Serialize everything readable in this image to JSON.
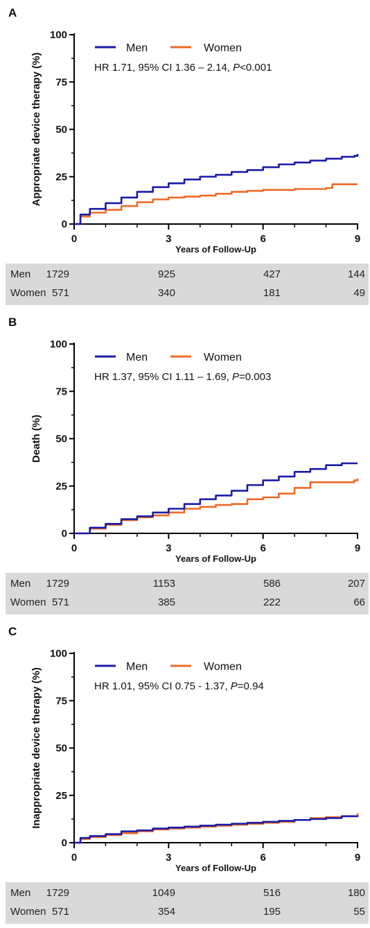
{
  "colors": {
    "men": "#1a1aa6",
    "women": "#ee6a25",
    "axis": "#000000",
    "table_bg": "#d9d9d9"
  },
  "chart_data": [
    {
      "panel": "A",
      "type": "line",
      "ylabel": "Appropriate device therapy (%)",
      "xlabel": "Years of Follow-Up",
      "xlim": [
        0,
        9
      ],
      "ylim": [
        0,
        100
      ],
      "xticks": [
        "0",
        "3",
        "6",
        "9"
      ],
      "yticks": [
        "0",
        "25",
        "50",
        "75",
        "100"
      ],
      "legend": [
        "Men",
        "Women"
      ],
      "legend_position": "top-left",
      "stat": {
        "hr_ci": "HR 1.71, 95% CI  1.36 – 2.14, ",
        "p_symbol": "P",
        "p_value": "<0.001"
      },
      "series": [
        {
          "name": "Men",
          "x": [
            0,
            0.2,
            0.5,
            1,
            1.5,
            2,
            2.5,
            3,
            3.5,
            4,
            4.5,
            5,
            5.5,
            6,
            6.5,
            7,
            7.5,
            8,
            8.5,
            8.9,
            9
          ],
          "y": [
            0,
            5,
            8,
            11,
            14,
            17,
            19.5,
            21.5,
            23.5,
            25,
            26,
            27.5,
            28.5,
            30,
            31.5,
            32.5,
            33.5,
            34.5,
            35.5,
            36,
            37
          ]
        },
        {
          "name": "Women",
          "x": [
            0,
            0.2,
            0.5,
            1,
            1.5,
            2,
            2.5,
            3,
            3.5,
            4,
            4.5,
            5,
            5.5,
            6,
            6.5,
            7,
            7.5,
            8,
            8.2,
            8.5,
            9
          ],
          "y": [
            0,
            4,
            6,
            7.5,
            9.5,
            11.5,
            13,
            14,
            14.5,
            15,
            16,
            17,
            17.5,
            18,
            18,
            18.5,
            18.5,
            19,
            21,
            21,
            21
          ]
        }
      ],
      "risk_table": [
        {
          "group": "Men",
          "counts": [
            "1729",
            "925",
            "427",
            "144"
          ]
        },
        {
          "group": "Women",
          "counts": [
            "571",
            "340",
            "181",
            "49"
          ]
        }
      ]
    },
    {
      "panel": "B",
      "type": "line",
      "ylabel": "Death (%)",
      "xlabel": "Years of Follow-Up",
      "xlim": [
        0,
        9
      ],
      "ylim": [
        0,
        100
      ],
      "xticks": [
        "0",
        "3",
        "6",
        "9"
      ],
      "yticks": [
        "0",
        "25",
        "50",
        "75",
        "100"
      ],
      "legend": [
        "Men",
        "Women"
      ],
      "legend_position": "top-left",
      "stat": {
        "hr_ci": "HR 1.37, 95% CI  1.11 – 1.69, ",
        "p_symbol": "P",
        "p_value": "=0.003"
      },
      "series": [
        {
          "name": "Men",
          "x": [
            0,
            0.5,
            1,
            1.5,
            2,
            2.5,
            3,
            3.5,
            4,
            4.5,
            5,
            5.5,
            6,
            6.5,
            7,
            7.5,
            8,
            8.5,
            9
          ],
          "y": [
            0,
            3,
            5,
            7.5,
            9,
            11,
            13,
            15.5,
            18,
            20,
            22.5,
            25.5,
            28,
            30,
            32.5,
            34,
            36,
            37,
            37
          ]
        },
        {
          "name": "Women",
          "x": [
            0,
            0.5,
            1,
            1.5,
            2,
            2.5,
            3,
            3.5,
            4,
            4.5,
            5,
            5.5,
            6,
            6.5,
            7,
            7.5,
            8,
            8.5,
            8.9,
            9
          ],
          "y": [
            0,
            2.5,
            4.5,
            7,
            8.5,
            9.5,
            11,
            13,
            14,
            15,
            15.5,
            18,
            19,
            21,
            24,
            27,
            27,
            27,
            28,
            29
          ]
        }
      ],
      "risk_table": [
        {
          "group": "Men",
          "counts": [
            "1729",
            "1153",
            "586",
            "207"
          ]
        },
        {
          "group": "Women",
          "counts": [
            "571",
            "385",
            "222",
            "66"
          ]
        }
      ]
    },
    {
      "panel": "C",
      "type": "line",
      "ylabel": "Inappropriate device therapy (%)",
      "xlabel": "Years of Follow-Up",
      "xlim": [
        0,
        9
      ],
      "ylim": [
        0,
        100
      ],
      "xticks": [
        "0",
        "3",
        "6",
        "9"
      ],
      "yticks": [
        "0",
        "25",
        "50",
        "75",
        "100"
      ],
      "legend": [
        "Men",
        "Women"
      ],
      "legend_position": "top-left",
      "stat": {
        "hr_ci": "HR 1.01, 95% CI  0.75 - 1.37, ",
        "p_symbol": "P",
        "p_value": "=0.94"
      },
      "series": [
        {
          "name": "Men",
          "x": [
            0,
            0.2,
            0.5,
            1,
            1.5,
            2,
            2.5,
            3,
            3.5,
            4,
            4.5,
            5,
            5.5,
            6,
            6.5,
            7,
            7.5,
            8,
            8.5,
            9
          ],
          "y": [
            0,
            2.5,
            3.5,
            4.5,
            6,
            6.5,
            7.5,
            8,
            8.5,
            9,
            9.5,
            10,
            10.5,
            11,
            11.5,
            12,
            12.5,
            13,
            14,
            14.5
          ]
        },
        {
          "name": "Women",
          "x": [
            0,
            0.2,
            0.5,
            1,
            1.5,
            2,
            2.5,
            3,
            3.5,
            4,
            4.5,
            5,
            5.5,
            6,
            6.5,
            7,
            7.5,
            8,
            8.5,
            9
          ],
          "y": [
            0,
            2,
            3,
            4,
            5,
            6,
            7,
            7.5,
            8,
            8.5,
            9,
            9.5,
            10,
            10.5,
            11,
            12,
            13,
            13.5,
            14,
            15.5
          ]
        }
      ],
      "risk_table": [
        {
          "group": "Men",
          "counts": [
            "1729",
            "1049",
            "516",
            "180"
          ]
        },
        {
          "group": "Women",
          "counts": [
            "571",
            "354",
            "195",
            "55"
          ]
        }
      ]
    }
  ]
}
